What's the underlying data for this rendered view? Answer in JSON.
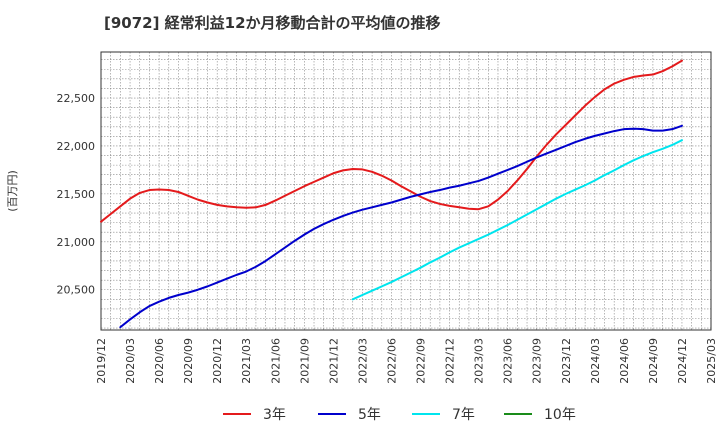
{
  "chart_data": {
    "type": "line",
    "title": "[9072]  経常利益12か月移動合計の平均値の推移",
    "ylabel": "(百万円)",
    "xlabel": "",
    "x_tick_labels": [
      "2019/12",
      "2020/03",
      "2020/06",
      "2020/09",
      "2020/12",
      "2021/03",
      "2021/06",
      "2021/09",
      "2021/12",
      "2022/03",
      "2022/06",
      "2022/09",
      "2022/12",
      "2023/03",
      "2023/06",
      "2023/09",
      "2023/12",
      "2024/03",
      "2024/06",
      "2024/09",
      "2024/12",
      "2025/03"
    ],
    "y_ticks": [
      20500,
      21000,
      21500,
      22000,
      22500
    ],
    "y_tick_labels": [
      "20,500",
      "21,000",
      "21,500",
      "22,000",
      "22,500"
    ],
    "ylim": [
      20080,
      22980
    ],
    "x_range": [
      "2019/12",
      "2025/03"
    ],
    "grid": true,
    "legend_position": "bottom",
    "series": [
      {
        "name": "3年",
        "color": "#e41a1c",
        "points": [
          [
            "2019/12",
            21210
          ],
          [
            "2020/01",
            21290
          ],
          [
            "2020/02",
            21370
          ],
          [
            "2020/03",
            21450
          ],
          [
            "2020/04",
            21510
          ],
          [
            "2020/05",
            21540
          ],
          [
            "2020/06",
            21545
          ],
          [
            "2020/07",
            21540
          ],
          [
            "2020/08",
            21520
          ],
          [
            "2020/09",
            21480
          ],
          [
            "2020/10",
            21440
          ],
          [
            "2020/11",
            21410
          ],
          [
            "2020/12",
            21385
          ],
          [
            "2021/01",
            21370
          ],
          [
            "2021/02",
            21360
          ],
          [
            "2021/03",
            21355
          ],
          [
            "2021/04",
            21360
          ],
          [
            "2021/05",
            21385
          ],
          [
            "2021/06",
            21430
          ],
          [
            "2021/07",
            21480
          ],
          [
            "2021/08",
            21530
          ],
          [
            "2021/09",
            21580
          ],
          [
            "2021/10",
            21625
          ],
          [
            "2021/11",
            21670
          ],
          [
            "2021/12",
            21715
          ],
          [
            "2022/01",
            21745
          ],
          [
            "2022/02",
            21760
          ],
          [
            "2022/03",
            21755
          ],
          [
            "2022/04",
            21730
          ],
          [
            "2022/05",
            21690
          ],
          [
            "2022/06",
            21640
          ],
          [
            "2022/07",
            21580
          ],
          [
            "2022/08",
            21525
          ],
          [
            "2022/09",
            21470
          ],
          [
            "2022/10",
            21425
          ],
          [
            "2022/11",
            21395
          ],
          [
            "2022/12",
            21375
          ],
          [
            "2023/01",
            21360
          ],
          [
            "2023/02",
            21345
          ],
          [
            "2023/03",
            21340
          ],
          [
            "2023/04",
            21370
          ],
          [
            "2023/05",
            21440
          ],
          [
            "2023/06",
            21530
          ],
          [
            "2023/07",
            21640
          ],
          [
            "2023/08",
            21760
          ],
          [
            "2023/09",
            21890
          ],
          [
            "2023/10",
            22010
          ],
          [
            "2023/11",
            22120
          ],
          [
            "2023/12",
            22220
          ],
          [
            "2024/01",
            22320
          ],
          [
            "2024/02",
            22420
          ],
          [
            "2024/03",
            22510
          ],
          [
            "2024/04",
            22590
          ],
          [
            "2024/05",
            22650
          ],
          [
            "2024/06",
            22690
          ],
          [
            "2024/07",
            22720
          ],
          [
            "2024/08",
            22735
          ],
          [
            "2024/09",
            22745
          ],
          [
            "2024/10",
            22780
          ],
          [
            "2024/11",
            22830
          ],
          [
            "2024/12",
            22890
          ]
        ]
      },
      {
        "name": "5年",
        "color": "#0000cc",
        "points": [
          [
            "2020/02",
            20110
          ],
          [
            "2020/03",
            20190
          ],
          [
            "2020/04",
            20265
          ],
          [
            "2020/05",
            20330
          ],
          [
            "2020/06",
            20375
          ],
          [
            "2020/07",
            20415
          ],
          [
            "2020/08",
            20445
          ],
          [
            "2020/09",
            20470
          ],
          [
            "2020/10",
            20500
          ],
          [
            "2020/11",
            20535
          ],
          [
            "2020/12",
            20575
          ],
          [
            "2021/01",
            20615
          ],
          [
            "2021/02",
            20655
          ],
          [
            "2021/03",
            20690
          ],
          [
            "2021/04",
            20740
          ],
          [
            "2021/05",
            20800
          ],
          [
            "2021/06",
            20870
          ],
          [
            "2021/07",
            20940
          ],
          [
            "2021/08",
            21010
          ],
          [
            "2021/09",
            21075
          ],
          [
            "2021/10",
            21135
          ],
          [
            "2021/11",
            21185
          ],
          [
            "2021/12",
            21230
          ],
          [
            "2022/01",
            21270
          ],
          [
            "2022/02",
            21305
          ],
          [
            "2022/03",
            21335
          ],
          [
            "2022/04",
            21360
          ],
          [
            "2022/05",
            21385
          ],
          [
            "2022/06",
            21410
          ],
          [
            "2022/07",
            21440
          ],
          [
            "2022/08",
            21470
          ],
          [
            "2022/09",
            21495
          ],
          [
            "2022/10",
            21520
          ],
          [
            "2022/11",
            21540
          ],
          [
            "2022/12",
            21565
          ],
          [
            "2023/01",
            21585
          ],
          [
            "2023/02",
            21610
          ],
          [
            "2023/03",
            21635
          ],
          [
            "2023/04",
            21670
          ],
          [
            "2023/05",
            21710
          ],
          [
            "2023/06",
            21750
          ],
          [
            "2023/07",
            21790
          ],
          [
            "2023/08",
            21835
          ],
          [
            "2023/09",
            21880
          ],
          [
            "2023/10",
            21920
          ],
          [
            "2023/11",
            21960
          ],
          [
            "2023/12",
            22000
          ],
          [
            "2024/01",
            22040
          ],
          [
            "2024/02",
            22075
          ],
          [
            "2024/03",
            22105
          ],
          [
            "2024/04",
            22130
          ],
          [
            "2024/05",
            22155
          ],
          [
            "2024/06",
            22175
          ],
          [
            "2024/07",
            22180
          ],
          [
            "2024/08",
            22175
          ],
          [
            "2024/09",
            22160
          ],
          [
            "2024/10",
            22160
          ],
          [
            "2024/11",
            22175
          ],
          [
            "2024/12",
            22210
          ]
        ]
      },
      {
        "name": "7年",
        "color": "#00e5ee",
        "points": [
          [
            "2022/02",
            20400
          ],
          [
            "2022/03",
            20445
          ],
          [
            "2022/04",
            20490
          ],
          [
            "2022/05",
            20535
          ],
          [
            "2022/06",
            20580
          ],
          [
            "2022/07",
            20630
          ],
          [
            "2022/08",
            20680
          ],
          [
            "2022/09",
            20730
          ],
          [
            "2022/10",
            20785
          ],
          [
            "2022/11",
            20835
          ],
          [
            "2022/12",
            20890
          ],
          [
            "2023/01",
            20940
          ],
          [
            "2023/02",
            20985
          ],
          [
            "2023/03",
            21030
          ],
          [
            "2023/04",
            21075
          ],
          [
            "2023/05",
            21125
          ],
          [
            "2023/06",
            21175
          ],
          [
            "2023/07",
            21230
          ],
          [
            "2023/08",
            21285
          ],
          [
            "2023/09",
            21340
          ],
          [
            "2023/10",
            21395
          ],
          [
            "2023/11",
            21450
          ],
          [
            "2023/12",
            21500
          ],
          [
            "2024/01",
            21545
          ],
          [
            "2024/02",
            21590
          ],
          [
            "2024/03",
            21640
          ],
          [
            "2024/04",
            21695
          ],
          [
            "2024/05",
            21745
          ],
          [
            "2024/06",
            21800
          ],
          [
            "2024/07",
            21850
          ],
          [
            "2024/08",
            21895
          ],
          [
            "2024/09",
            21935
          ],
          [
            "2024/10",
            21970
          ],
          [
            "2024/11",
            22010
          ],
          [
            "2024/12",
            22060
          ]
        ]
      },
      {
        "name": "10年",
        "color": "#1a8c1a",
        "points": []
      }
    ]
  }
}
